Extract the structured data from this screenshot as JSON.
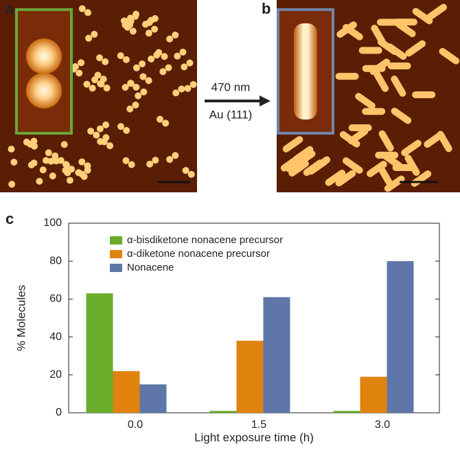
{
  "panel_labels": [
    "a",
    "b",
    "c"
  ],
  "arrow": {
    "top": "470 nm",
    "bottom": "Au (111)"
  },
  "chart_data": {
    "type": "bar",
    "x_label": "Light exposure time (h)",
    "y_label": "% Molecules",
    "categories": [
      "0.0",
      "1.5",
      "3.0"
    ],
    "series": [
      {
        "name": "α-bisdiketone nonacene precursor",
        "color": "#6aad2a",
        "values": [
          63,
          1,
          1
        ]
      },
      {
        "name": "α-diketone nonacene precursor",
        "color": "#e0830e",
        "values": [
          22,
          38,
          19
        ]
      },
      {
        "name": "Nonacene",
        "color": "#5f77a8",
        "values": [
          15,
          61,
          80
        ]
      }
    ],
    "ylim": [
      0,
      100
    ],
    "yticks": [
      0,
      20,
      40,
      60,
      80,
      100
    ],
    "grid": false,
    "legend": "upper left"
  }
}
